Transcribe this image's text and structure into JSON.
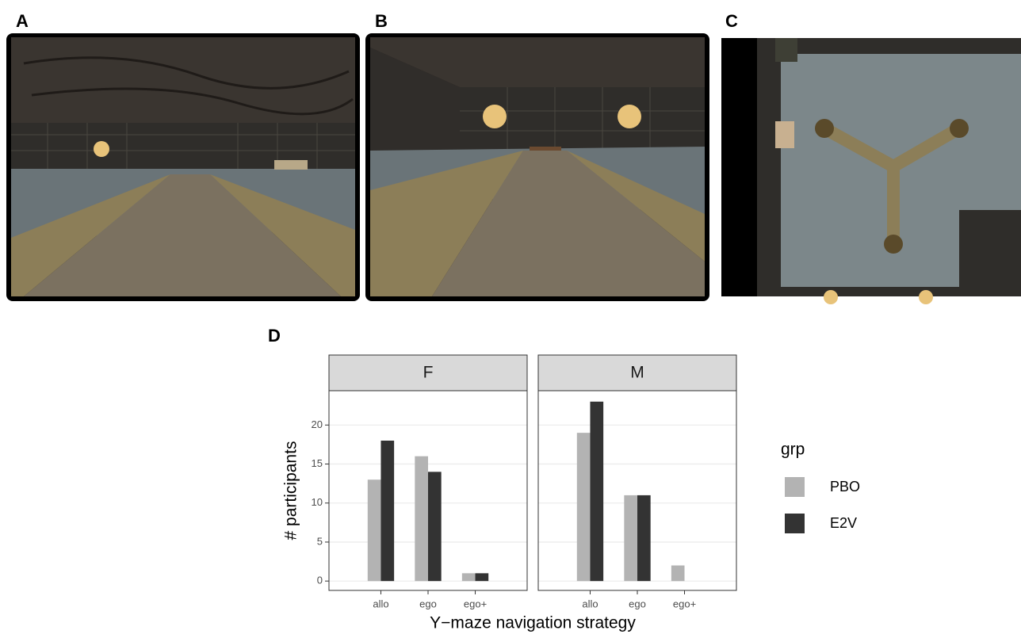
{
  "panel_labels": [
    "A",
    "B",
    "C",
    "D"
  ],
  "chart_data": {
    "type": "bar",
    "xlabel": "Y−maze navigation strategy",
    "ylabel": "# participants",
    "legend_title": "grp",
    "legend_position": "right",
    "categories": [
      "allo",
      "ego",
      "ego+"
    ],
    "series": [
      {
        "name": "PBO",
        "color": "#b3b3b3"
      },
      {
        "name": "E2V",
        "color": "#333333"
      }
    ],
    "facets": [
      {
        "title": "F",
        "values": [
          [
            13,
            16,
            1
          ],
          [
            18,
            14,
            1
          ]
        ]
      },
      {
        "title": "M",
        "values": [
          [
            19,
            11,
            2
          ],
          [
            23,
            11,
            0
          ]
        ]
      }
    ],
    "ylim": [
      -1.2,
      24.4
    ],
    "yticks": [
      0,
      5,
      10,
      15,
      20
    ],
    "grid": true
  }
}
